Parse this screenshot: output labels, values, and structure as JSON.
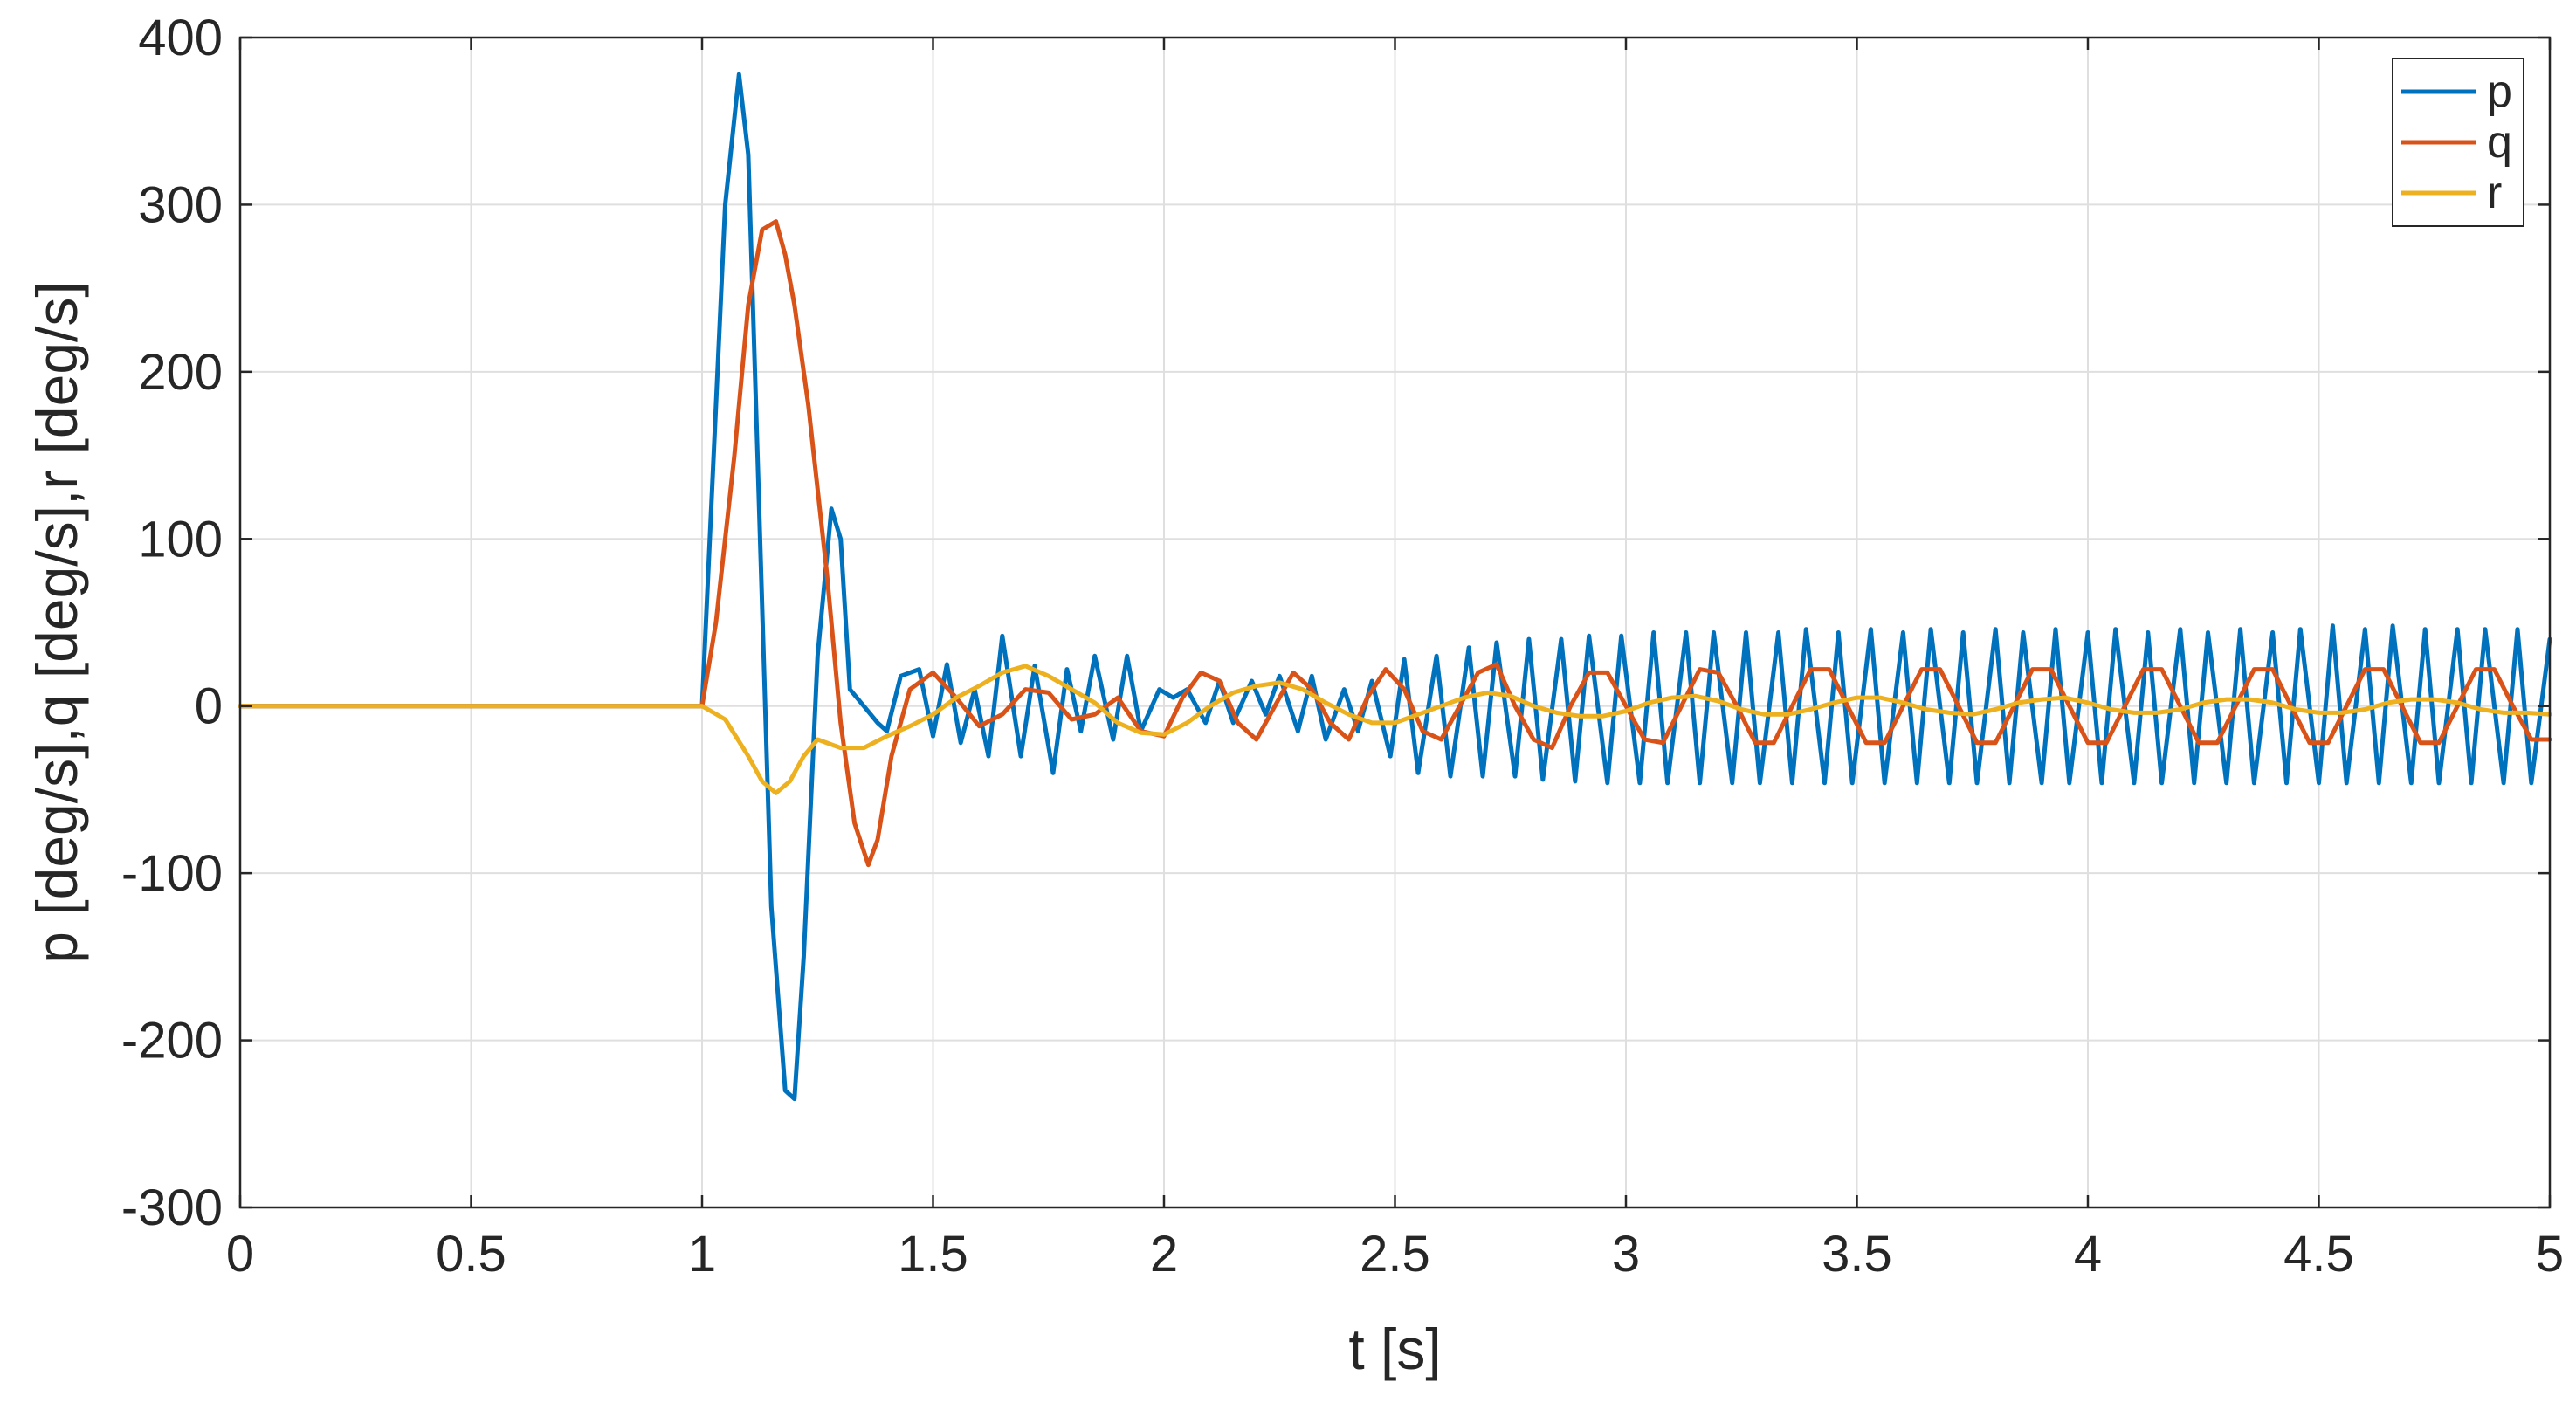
{
  "chart_data": {
    "type": "line",
    "title": "",
    "xlabel": "t [s]",
    "ylabel": "p [deg/s],q [deg/s],r [deg/s]",
    "xlim": [
      0,
      5
    ],
    "ylim": [
      -300,
      400
    ],
    "xticks": [
      0,
      0.5,
      1,
      1.5,
      2,
      2.5,
      3,
      3.5,
      4,
      4.5,
      5
    ],
    "xtick_labels": [
      "0",
      "0.5",
      "1",
      "1.5",
      "2",
      "2.5",
      "3",
      "3.5",
      "4",
      "4.5",
      "5"
    ],
    "yticks": [
      -300,
      -200,
      -100,
      0,
      100,
      200,
      300,
      400
    ],
    "ytick_labels": [
      "-300",
      "-200",
      "-100",
      "0",
      "100",
      "200",
      "300",
      "400"
    ],
    "grid": true,
    "legend_position": "top-right",
    "series": [
      {
        "name": "p",
        "color": "#0072BD",
        "x": [
          0,
          1.0,
          1.02,
          1.05,
          1.08,
          1.1,
          1.12,
          1.15,
          1.18,
          1.2,
          1.22,
          1.25,
          1.28,
          1.3,
          1.32,
          1.35,
          1.38,
          1.4,
          1.43,
          1.47,
          1.5,
          1.53,
          1.56,
          1.59,
          1.62,
          1.65,
          1.69,
          1.72,
          1.76,
          1.79,
          1.82,
          1.85,
          1.89,
          1.92,
          1.95,
          1.99,
          2.02,
          2.05,
          2.09,
          2.12,
          2.15,
          2.19,
          2.22,
          2.25,
          2.29,
          2.32,
          2.35,
          2.39,
          2.42,
          2.45,
          2.49,
          2.52,
          2.55,
          2.59,
          2.62,
          2.66,
          2.69,
          2.72,
          2.76,
          2.79,
          2.82,
          2.86,
          2.89,
          2.92,
          2.96,
          2.99,
          3.03,
          3.06,
          3.09,
          3.13,
          3.16,
          3.19,
          3.23,
          3.26,
          3.29,
          3.33,
          3.36,
          3.39,
          3.43,
          3.46,
          3.49,
          3.53,
          3.56,
          3.6,
          3.63,
          3.66,
          3.7,
          3.73,
          3.76,
          3.8,
          3.83,
          3.86,
          3.9,
          3.93,
          3.96,
          4.0,
          4.03,
          4.06,
          4.1,
          4.13,
          4.16,
          4.2,
          4.23,
          4.26,
          4.3,
          4.33,
          4.36,
          4.4,
          4.43,
          4.46,
          4.5,
          4.53,
          4.56,
          4.6,
          4.63,
          4.66,
          4.7,
          4.73,
          4.76,
          4.8,
          4.83,
          4.86,
          4.9,
          4.93,
          4.96,
          5.0
        ],
        "values": [
          0,
          0,
          120,
          300,
          378,
          330,
          150,
          -120,
          -230,
          -235,
          -150,
          30,
          118,
          100,
          10,
          0,
          -10,
          -15,
          18,
          22,
          -18,
          25,
          -22,
          10,
          -30,
          42,
          -30,
          24,
          -40,
          22,
          -15,
          30,
          -20,
          30,
          -15,
          10,
          5,
          10,
          -10,
          15,
          -10,
          15,
          -5,
          18,
          -15,
          18,
          -20,
          10,
          -15,
          15,
          -30,
          28,
          -40,
          30,
          -42,
          35,
          -42,
          38,
          -42,
          40,
          -44,
          40,
          -45,
          42,
          -46,
          42,
          -46,
          44,
          -46,
          44,
          -46,
          44,
          -46,
          44,
          -46,
          44,
          -46,
          46,
          -46,
          44,
          -46,
          46,
          -46,
          44,
          -46,
          46,
          -46,
          44,
          -46,
          46,
          -46,
          44,
          -46,
          46,
          -46,
          44,
          -46,
          46,
          -46,
          44,
          -46,
          46,
          -46,
          44,
          -46,
          46,
          -46,
          44,
          -46,
          46,
          -46,
          48,
          -46,
          46,
          -46,
          48,
          -46,
          46,
          -46,
          46,
          -46,
          46,
          -46,
          46,
          -46,
          40
        ]
      },
      {
        "name": "q",
        "color": "#D95319",
        "x": [
          0,
          1.0,
          1.03,
          1.07,
          1.1,
          1.13,
          1.16,
          1.18,
          1.2,
          1.23,
          1.27,
          1.3,
          1.33,
          1.36,
          1.38,
          1.41,
          1.45,
          1.5,
          1.55,
          1.6,
          1.65,
          1.7,
          1.75,
          1.8,
          1.85,
          1.9,
          1.95,
          2.0,
          2.04,
          2.08,
          2.12,
          2.16,
          2.2,
          2.24,
          2.28,
          2.32,
          2.36,
          2.4,
          2.44,
          2.48,
          2.52,
          2.56,
          2.6,
          2.64,
          2.68,
          2.72,
          2.76,
          2.8,
          2.84,
          2.88,
          2.92,
          2.96,
          3.0,
          3.04,
          3.08,
          3.12,
          3.16,
          3.2,
          3.24,
          3.28,
          3.32,
          3.36,
          3.4,
          3.44,
          3.48,
          3.52,
          3.56,
          3.6,
          3.64,
          3.68,
          3.72,
          3.76,
          3.8,
          3.84,
          3.88,
          3.92,
          3.96,
          4.0,
          4.04,
          4.08,
          4.12,
          4.16,
          4.2,
          4.24,
          4.28,
          4.32,
          4.36,
          4.4,
          4.44,
          4.48,
          4.52,
          4.56,
          4.6,
          4.64,
          4.68,
          4.72,
          4.76,
          4.8,
          4.84,
          4.88,
          4.92,
          4.96,
          5.0
        ],
        "values": [
          0,
          0,
          50,
          150,
          240,
          285,
          290,
          270,
          240,
          180,
          80,
          -10,
          -70,
          -95,
          -80,
          -30,
          10,
          20,
          5,
          -12,
          -5,
          10,
          8,
          -8,
          -5,
          5,
          -15,
          -18,
          5,
          20,
          15,
          -10,
          -20,
          0,
          20,
          10,
          -10,
          -20,
          5,
          22,
          10,
          -15,
          -20,
          0,
          20,
          25,
          0,
          -20,
          -25,
          0,
          20,
          20,
          0,
          -20,
          -22,
          0,
          22,
          20,
          0,
          -22,
          -22,
          0,
          22,
          22,
          0,
          -22,
          -22,
          0,
          22,
          22,
          0,
          -22,
          -22,
          0,
          22,
          22,
          0,
          -22,
          -22,
          0,
          22,
          22,
          0,
          -22,
          -22,
          0,
          22,
          22,
          0,
          -22,
          -22,
          0,
          22,
          22,
          0,
          -22,
          -22,
          0,
          22,
          22,
          0,
          -20,
          -20
        ]
      },
      {
        "name": "r",
        "color": "#EDB120",
        "x": [
          0,
          1.0,
          1.05,
          1.1,
          1.13,
          1.16,
          1.19,
          1.22,
          1.25,
          1.3,
          1.35,
          1.4,
          1.45,
          1.5,
          1.55,
          1.6,
          1.65,
          1.7,
          1.75,
          1.8,
          1.85,
          1.9,
          1.95,
          2.0,
          2.05,
          2.1,
          2.15,
          2.2,
          2.25,
          2.3,
          2.35,
          2.4,
          2.45,
          2.5,
          2.55,
          2.6,
          2.65,
          2.7,
          2.75,
          2.8,
          2.85,
          2.9,
          2.95,
          3.0,
          3.05,
          3.1,
          3.15,
          3.2,
          3.25,
          3.3,
          3.35,
          3.4,
          3.45,
          3.5,
          3.55,
          3.6,
          3.65,
          3.7,
          3.75,
          3.8,
          3.85,
          3.9,
          3.95,
          4.0,
          4.05,
          4.1,
          4.15,
          4.2,
          4.25,
          4.3,
          4.35,
          4.4,
          4.45,
          4.5,
          4.55,
          4.6,
          4.65,
          4.7,
          4.75,
          4.8,
          4.85,
          4.9,
          4.95,
          5.0
        ],
        "values": [
          0,
          0,
          -8,
          -30,
          -45,
          -52,
          -45,
          -30,
          -20,
          -25,
          -25,
          -18,
          -12,
          -5,
          5,
          12,
          20,
          24,
          18,
          10,
          2,
          -10,
          -16,
          -17,
          -10,
          0,
          8,
          12,
          14,
          10,
          2,
          -5,
          -10,
          -10,
          -5,
          0,
          5,
          8,
          6,
          0,
          -4,
          -6,
          -6,
          -3,
          2,
          5,
          6,
          3,
          -2,
          -5,
          -5,
          -2,
          2,
          5,
          5,
          2,
          -2,
          -4,
          -5,
          -2,
          2,
          4,
          5,
          2,
          -2,
          -4,
          -4,
          -2,
          2,
          4,
          4,
          2,
          -2,
          -4,
          -4,
          -2,
          2,
          4,
          4,
          2,
          -2,
          -4,
          -4,
          -5
        ]
      }
    ]
  }
}
